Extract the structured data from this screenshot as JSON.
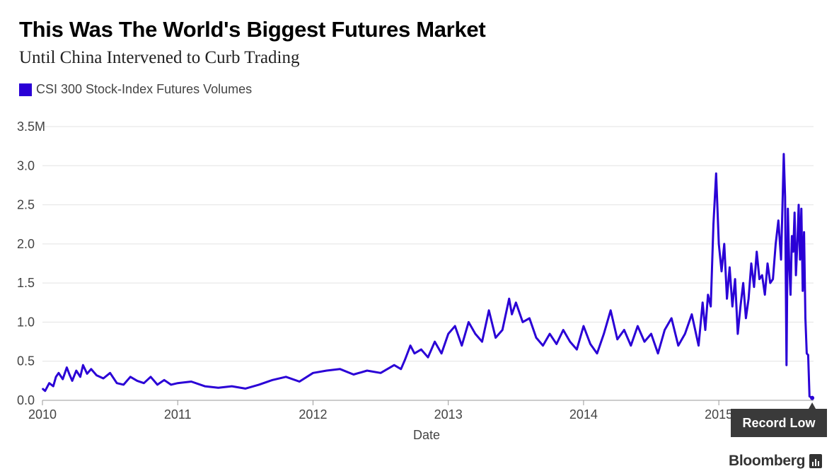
{
  "title": "This Was The World's Biggest Futures Market",
  "subtitle": "Until China Intervened to Curb Trading",
  "colors": {
    "series": "#2a00d6",
    "grid": "#e3e3e3",
    "axis": "#999999"
  },
  "callout": {
    "text": "Record Low"
  },
  "brand": {
    "text": "Bloomberg",
    "icon": "bloomberg-terminal-icon"
  },
  "chart_data": {
    "type": "line",
    "title": "This Was The World's Biggest Futures Market",
    "subtitle": "Until China Intervened to Curb Trading",
    "xlabel": "Date",
    "ylabel": "",
    "xlim": [
      2010.0,
      2015.7
    ],
    "ylim": [
      0,
      3.5
    ],
    "y_unit": "M",
    "yticks": [
      0.0,
      0.5,
      1.0,
      1.5,
      2.0,
      2.5,
      3.0,
      3.5
    ],
    "ytick_labels": [
      "0.0",
      "0.5",
      "1.0",
      "1.5",
      "2.0",
      "2.5",
      "3.0",
      "3.5M"
    ],
    "xticks": [
      2010,
      2011,
      2012,
      2013,
      2014,
      2015
    ],
    "xtick_labels": [
      "2010",
      "2011",
      "2012",
      "2013",
      "2014",
      "2015"
    ],
    "grid": true,
    "legend": "top-left",
    "series": [
      {
        "name": "CSI 300 Stock-Index Futures Volumes",
        "x": [
          2010.0,
          2010.02,
          2010.05,
          2010.08,
          2010.1,
          2010.12,
          2010.15,
          2010.18,
          2010.2,
          2010.22,
          2010.25,
          2010.28,
          2010.3,
          2010.33,
          2010.36,
          2010.4,
          2010.45,
          2010.5,
          2010.55,
          2010.6,
          2010.65,
          2010.7,
          2010.75,
          2010.8,
          2010.85,
          2010.9,
          2010.95,
          2011.0,
          2011.1,
          2011.2,
          2011.3,
          2011.4,
          2011.5,
          2011.6,
          2011.7,
          2011.8,
          2011.9,
          2012.0,
          2012.1,
          2012.2,
          2012.3,
          2012.4,
          2012.5,
          2012.6,
          2012.65,
          2012.68,
          2012.72,
          2012.75,
          2012.8,
          2012.85,
          2012.9,
          2012.95,
          2013.0,
          2013.05,
          2013.1,
          2013.15,
          2013.2,
          2013.25,
          2013.3,
          2013.35,
          2013.4,
          2013.45,
          2013.47,
          2013.5,
          2013.55,
          2013.6,
          2013.65,
          2013.7,
          2013.75,
          2013.8,
          2013.85,
          2013.9,
          2013.95,
          2014.0,
          2014.05,
          2014.1,
          2014.15,
          2014.2,
          2014.25,
          2014.3,
          2014.35,
          2014.4,
          2014.45,
          2014.5,
          2014.55,
          2014.6,
          2014.65,
          2014.7,
          2014.75,
          2014.8,
          2014.85,
          2014.88,
          2014.9,
          2014.92,
          2014.94,
          2014.96,
          2014.98,
          2015.0,
          2015.02,
          2015.04,
          2015.06,
          2015.08,
          2015.1,
          2015.12,
          2015.14,
          2015.16,
          2015.18,
          2015.2,
          2015.22,
          2015.24,
          2015.26,
          2015.28,
          2015.3,
          2015.32,
          2015.34,
          2015.36,
          2015.38,
          2015.4,
          2015.42,
          2015.44,
          2015.46,
          2015.47,
          2015.48,
          2015.49,
          2015.5,
          2015.51,
          2015.52,
          2015.53,
          2015.54,
          2015.55,
          2015.56,
          2015.57,
          2015.58,
          2015.59,
          2015.6,
          2015.61,
          2015.62,
          2015.63,
          2015.64,
          2015.65,
          2015.66,
          2015.67,
          2015.68,
          2015.69
        ],
        "values": [
          0.15,
          0.12,
          0.22,
          0.18,
          0.3,
          0.35,
          0.27,
          0.42,
          0.33,
          0.25,
          0.38,
          0.3,
          0.45,
          0.34,
          0.4,
          0.32,
          0.28,
          0.35,
          0.22,
          0.2,
          0.3,
          0.25,
          0.22,
          0.3,
          0.2,
          0.26,
          0.2,
          0.22,
          0.24,
          0.18,
          0.16,
          0.18,
          0.15,
          0.2,
          0.26,
          0.3,
          0.24,
          0.35,
          0.38,
          0.4,
          0.33,
          0.38,
          0.35,
          0.45,
          0.4,
          0.52,
          0.7,
          0.6,
          0.65,
          0.55,
          0.75,
          0.6,
          0.85,
          0.95,
          0.7,
          1.0,
          0.85,
          0.75,
          1.15,
          0.8,
          0.9,
          1.3,
          1.1,
          1.25,
          1.0,
          1.05,
          0.8,
          0.7,
          0.85,
          0.72,
          0.9,
          0.75,
          0.65,
          0.95,
          0.72,
          0.6,
          0.85,
          1.15,
          0.78,
          0.9,
          0.7,
          0.95,
          0.75,
          0.85,
          0.6,
          0.9,
          1.05,
          0.7,
          0.85,
          1.1,
          0.7,
          1.25,
          0.9,
          1.35,
          1.2,
          2.25,
          2.9,
          2.0,
          1.65,
          2.0,
          1.3,
          1.7,
          1.2,
          1.55,
          0.85,
          1.2,
          1.5,
          1.05,
          1.3,
          1.75,
          1.45,
          1.9,
          1.55,
          1.6,
          1.35,
          1.75,
          1.5,
          1.55,
          2.0,
          2.3,
          1.8,
          2.45,
          3.15,
          2.6,
          0.45,
          2.45,
          1.75,
          1.35,
          2.1,
          1.9,
          2.4,
          1.6,
          2.0,
          2.5,
          1.8,
          2.45,
          1.4,
          2.15,
          1.05,
          0.6,
          0.58,
          0.05,
          0.04,
          0.03
        ]
      }
    ],
    "annotations": [
      {
        "text": "Record Low",
        "x": 2015.69,
        "y": 0.03
      }
    ]
  }
}
